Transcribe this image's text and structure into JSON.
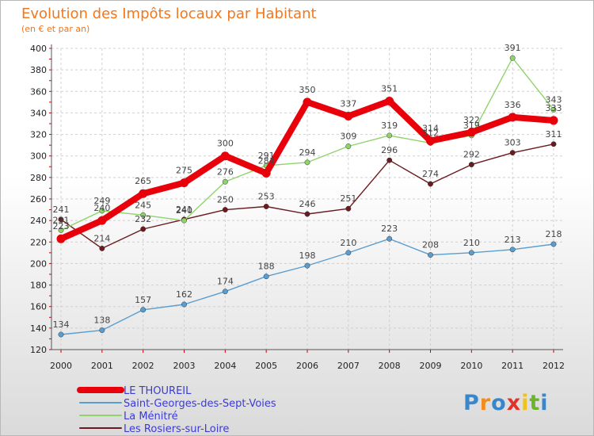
{
  "chart_data": {
    "type": "line",
    "title": "Evolution des Impôts locaux par Habitant",
    "subtitle": "(en € et par an)",
    "x": [
      "2000",
      "2001",
      "2002",
      "2003",
      "2004",
      "2005",
      "2006",
      "2007",
      "2008",
      "2009",
      "2010",
      "2011",
      "2012"
    ],
    "ylim": [
      120,
      400
    ],
    "yticks": [
      120,
      140,
      160,
      180,
      200,
      220,
      240,
      260,
      280,
      300,
      320,
      340,
      360,
      380,
      400
    ],
    "grid": true,
    "legend_position": "bottom-left",
    "series": [
      {
        "name": "Les Rosiers-sur-Loire",
        "color": "#6b1a1f",
        "values": [
          241,
          214,
          232,
          241,
          250,
          253,
          246,
          251,
          296,
          274,
          292,
          303,
          311
        ]
      },
      {
        "name": "La Ménitré",
        "color": "#8fd46a",
        "values": [
          231,
          249,
          245,
          240,
          276,
          291,
          294,
          309,
          319,
          312,
          319,
          391,
          343
        ]
      },
      {
        "name": "Saint-Georges-des-Sept-Voies",
        "color": "#5a9ed0",
        "values": [
          134,
          138,
          157,
          162,
          174,
          188,
          198,
          210,
          223,
          208,
          210,
          213,
          218
        ]
      },
      {
        "name": "LE THOUREIL",
        "color": "#e8000b",
        "values": [
          223,
          240,
          265,
          275,
          300,
          284,
          350,
          337,
          351,
          314,
          322,
          336,
          333
        ]
      }
    ]
  },
  "brand": {
    "letters": [
      "P",
      "r",
      "o",
      "x",
      "i",
      "t",
      "i"
    ]
  }
}
